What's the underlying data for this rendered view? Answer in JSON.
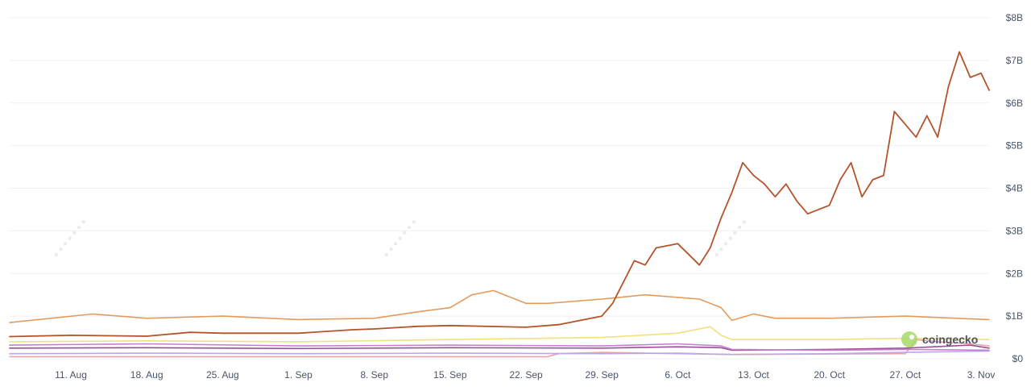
{
  "chart_data": {
    "type": "line",
    "title": "",
    "xlabel": "",
    "ylabel": "",
    "x_ticks": [
      "11. Aug",
      "18. Aug",
      "25. Aug",
      "1. Sep",
      "8. Sep",
      "15. Sep",
      "22. Sep",
      "29. Sep",
      "6. Oct",
      "13. Oct",
      "20. Oct",
      "27. Oct",
      "3. Nov"
    ],
    "y_ticks": [
      "$0",
      "$1B",
      "$2B",
      "$3B",
      "$4B",
      "$5B",
      "$6B",
      "$7B",
      "$8B"
    ],
    "ylim": [
      0,
      8
    ],
    "y_unit": "billions USD",
    "grid": true,
    "legend": "none",
    "x_start": "2025-08-05",
    "x_end": "2025-11-04",
    "watermark": "coingecko",
    "series": [
      {
        "color": "#b4532a",
        "points": [
          [
            "2025-08-05",
            0.52
          ],
          [
            "2025-08-11",
            0.55
          ],
          [
            "2025-08-18",
            0.53
          ],
          [
            "2025-08-22",
            0.62
          ],
          [
            "2025-08-25",
            0.6
          ],
          [
            "2025-09-01",
            0.6
          ],
          [
            "2025-09-06",
            0.68
          ],
          [
            "2025-09-08",
            0.7
          ],
          [
            "2025-09-12",
            0.76
          ],
          [
            "2025-09-15",
            0.78
          ],
          [
            "2025-09-22",
            0.74
          ],
          [
            "2025-09-25",
            0.8
          ],
          [
            "2025-09-29",
            1.0
          ],
          [
            "2025-09-30",
            1.3
          ],
          [
            "2025-10-02",
            2.3
          ],
          [
            "2025-10-03",
            2.2
          ],
          [
            "2025-10-04",
            2.6
          ],
          [
            "2025-10-06",
            2.7
          ],
          [
            "2025-10-08",
            2.2
          ],
          [
            "2025-10-09",
            2.6
          ],
          [
            "2025-10-10",
            3.3
          ],
          [
            "2025-10-11",
            3.9
          ],
          [
            "2025-10-12",
            4.6
          ],
          [
            "2025-10-13",
            4.3
          ],
          [
            "2025-10-14",
            4.1
          ],
          [
            "2025-10-15",
            3.8
          ],
          [
            "2025-10-16",
            4.1
          ],
          [
            "2025-10-17",
            3.7
          ],
          [
            "2025-10-18",
            3.4
          ],
          [
            "2025-10-19",
            3.5
          ],
          [
            "2025-10-20",
            3.6
          ],
          [
            "2025-10-21",
            4.2
          ],
          [
            "2025-10-22",
            4.6
          ],
          [
            "2025-10-23",
            3.8
          ],
          [
            "2025-10-24",
            4.2
          ],
          [
            "2025-10-25",
            4.3
          ],
          [
            "2025-10-26",
            5.8
          ],
          [
            "2025-10-27",
            5.5
          ],
          [
            "2025-10-28",
            5.2
          ],
          [
            "2025-10-29",
            5.7
          ],
          [
            "2025-10-30",
            5.2
          ],
          [
            "2025-10-31",
            6.4
          ],
          [
            "2025-11-01",
            7.2
          ],
          [
            "2025-11-02",
            6.6
          ],
          [
            "2025-11-03",
            6.7
          ],
          [
            "2025-11-04",
            6.3
          ]
        ]
      },
      {
        "color": "#e59a5c",
        "points": [
          [
            "2025-08-05",
            0.85
          ],
          [
            "2025-08-13",
            1.05
          ],
          [
            "2025-08-18",
            0.95
          ],
          [
            "2025-08-25",
            1.0
          ],
          [
            "2025-09-01",
            0.92
          ],
          [
            "2025-09-08",
            0.95
          ],
          [
            "2025-09-12",
            1.1
          ],
          [
            "2025-09-15",
            1.2
          ],
          [
            "2025-09-17",
            1.5
          ],
          [
            "2025-09-19",
            1.6
          ],
          [
            "2025-09-22",
            1.3
          ],
          [
            "2025-09-24",
            1.3
          ],
          [
            "2025-09-29",
            1.4
          ],
          [
            "2025-10-03",
            1.5
          ],
          [
            "2025-10-08",
            1.4
          ],
          [
            "2025-10-10",
            1.2
          ],
          [
            "2025-10-11",
            0.9
          ],
          [
            "2025-10-13",
            1.05
          ],
          [
            "2025-10-15",
            0.95
          ],
          [
            "2025-10-20",
            0.95
          ],
          [
            "2025-10-27",
            1.0
          ],
          [
            "2025-11-04",
            0.92
          ]
        ]
      },
      {
        "color": "#f2e07e",
        "points": [
          [
            "2025-08-05",
            0.4
          ],
          [
            "2025-08-18",
            0.42
          ],
          [
            "2025-09-01",
            0.4
          ],
          [
            "2025-09-15",
            0.45
          ],
          [
            "2025-09-29",
            0.5
          ],
          [
            "2025-10-06",
            0.6
          ],
          [
            "2025-10-09",
            0.75
          ],
          [
            "2025-10-10",
            0.55
          ],
          [
            "2025-10-11",
            0.45
          ],
          [
            "2025-10-20",
            0.45
          ],
          [
            "2025-10-27",
            0.48
          ],
          [
            "2025-11-04",
            0.45
          ]
        ]
      },
      {
        "color": "#c77dd0",
        "points": [
          [
            "2025-08-05",
            0.32
          ],
          [
            "2025-08-18",
            0.35
          ],
          [
            "2025-09-01",
            0.3
          ],
          [
            "2025-09-15",
            0.32
          ],
          [
            "2025-09-29",
            0.3
          ],
          [
            "2025-10-06",
            0.35
          ],
          [
            "2025-10-10",
            0.3
          ],
          [
            "2025-10-11",
            0.22
          ],
          [
            "2025-10-20",
            0.2
          ],
          [
            "2025-10-27",
            0.22
          ],
          [
            "2025-11-04",
            0.2
          ]
        ]
      },
      {
        "color": "#9b4f96",
        "points": [
          [
            "2025-08-05",
            0.25
          ],
          [
            "2025-08-18",
            0.26
          ],
          [
            "2025-09-01",
            0.24
          ],
          [
            "2025-09-15",
            0.26
          ],
          [
            "2025-09-29",
            0.25
          ],
          [
            "2025-10-06",
            0.28
          ],
          [
            "2025-10-10",
            0.26
          ],
          [
            "2025-10-11",
            0.2
          ],
          [
            "2025-10-20",
            0.22
          ],
          [
            "2025-10-27",
            0.25
          ],
          [
            "2025-11-02",
            0.32
          ],
          [
            "2025-11-04",
            0.25
          ]
        ]
      },
      {
        "color": "#b9a7e8",
        "points": [
          [
            "2025-08-05",
            0.12
          ],
          [
            "2025-08-18",
            0.13
          ],
          [
            "2025-09-01",
            0.12
          ],
          [
            "2025-09-15",
            0.13
          ],
          [
            "2025-09-29",
            0.12
          ],
          [
            "2025-10-06",
            0.13
          ],
          [
            "2025-10-11",
            0.1
          ],
          [
            "2025-10-20",
            0.12
          ],
          [
            "2025-10-27",
            0.15
          ],
          [
            "2025-11-04",
            0.18
          ]
        ]
      },
      {
        "color": "#f0a3a3",
        "points": [
          [
            "2025-08-05",
            0.05
          ],
          [
            "2025-09-01",
            0.05
          ],
          [
            "2025-09-24",
            0.05
          ],
          [
            "2025-09-25",
            0.12
          ],
          [
            "2025-09-29",
            0.15
          ],
          [
            "2025-10-06",
            0.12
          ],
          [
            "2025-10-11",
            0.1
          ],
          [
            "2025-10-27",
            0.12
          ],
          [
            "2025-10-28",
            0.45
          ],
          [
            "2025-10-30",
            0.4
          ],
          [
            "2025-11-02",
            0.35
          ],
          [
            "2025-11-04",
            0.3
          ]
        ]
      }
    ]
  }
}
